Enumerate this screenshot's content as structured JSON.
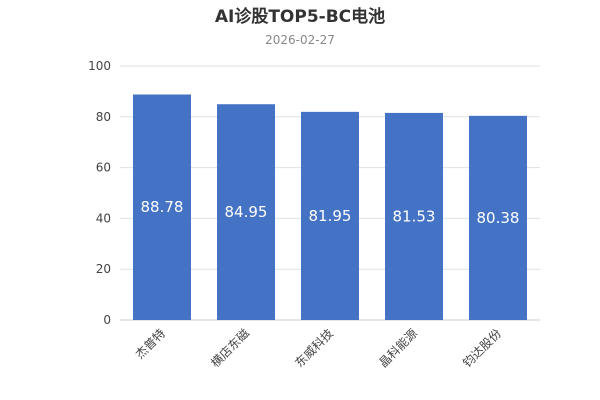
{
  "chart_data": {
    "type": "bar",
    "title": "AI诊股TOP5-BC电池",
    "subtitle": "2026-02-27",
    "categories": [
      "杰普特",
      "横店东磁",
      "东威科技",
      "晶科能源",
      "钧达股份"
    ],
    "values": [
      88.78,
      84.95,
      81.95,
      81.53,
      80.38
    ],
    "data_labels": [
      "88.78",
      "84.95",
      "81.95",
      "81.53",
      "80.38"
    ],
    "ylim": [
      0,
      100
    ],
    "yticks": [
      0,
      20,
      40,
      60,
      80,
      100
    ],
    "xlabel": "",
    "ylabel": "",
    "grid": true,
    "legend": false,
    "bar_color": "#4472c4"
  }
}
